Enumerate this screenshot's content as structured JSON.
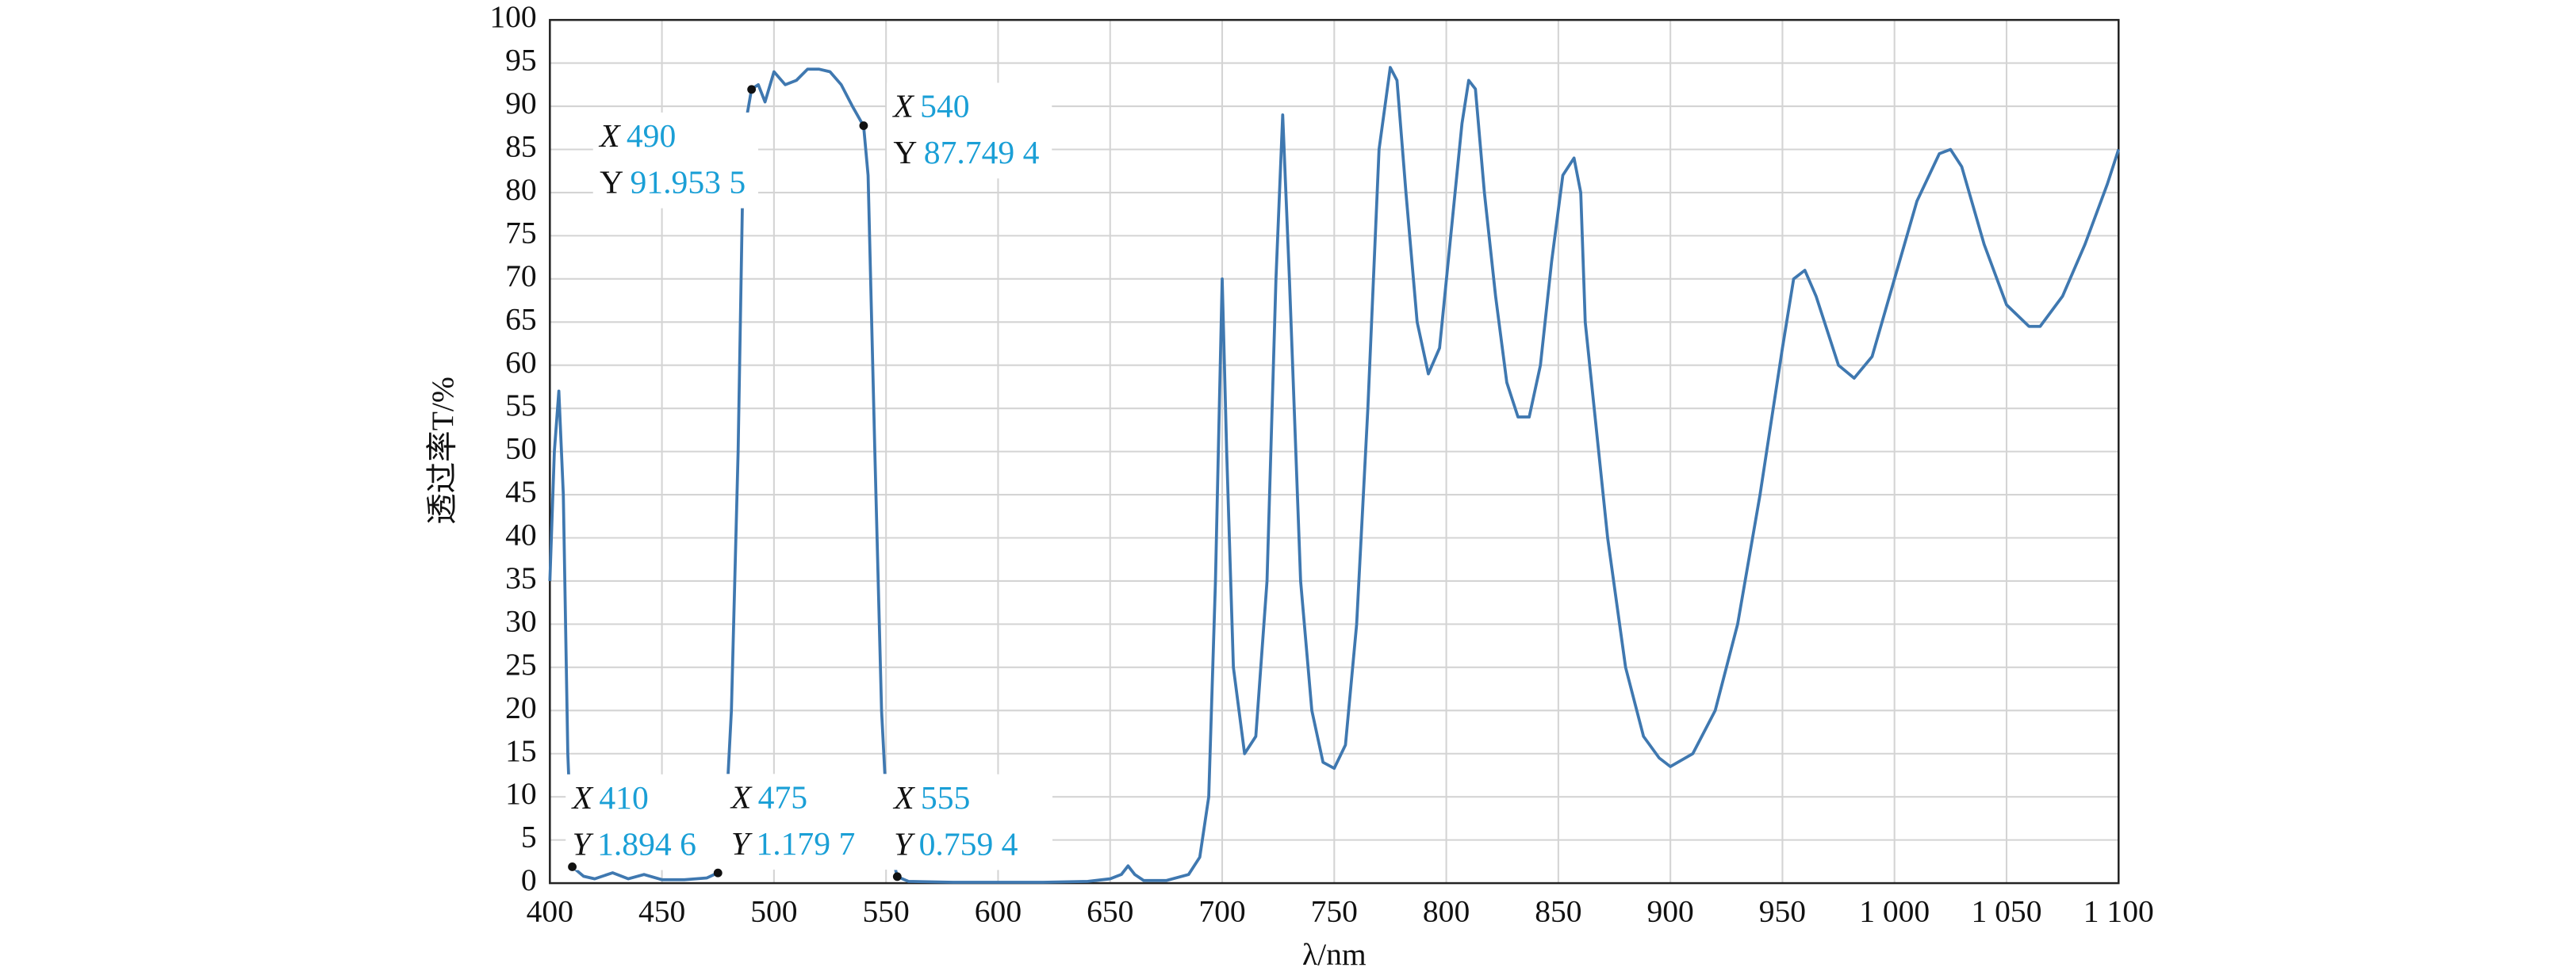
{
  "chart_data": {
    "type": "line",
    "xlabel": "λ/nm",
    "ylabel": "透过率T/%",
    "color": "#3f78b0",
    "grid": true,
    "xlim": [
      400,
      1100
    ],
    "ylim": [
      0,
      100
    ],
    "xticks": [
      400,
      450,
      500,
      550,
      600,
      650,
      700,
      750,
      800,
      850,
      900,
      950,
      {
        "value": 1000,
        "label": "1 000"
      },
      {
        "value": 1050,
        "label": "1 050"
      },
      {
        "value": 1100,
        "label": "1 100"
      }
    ],
    "yticks": [
      0,
      5,
      10,
      15,
      20,
      25,
      30,
      35,
      40,
      45,
      50,
      55,
      60,
      65,
      70,
      75,
      80,
      85,
      90,
      95,
      100
    ],
    "x": [
      400,
      402,
      404,
      406,
      408,
      410,
      415,
      420,
      428,
      435,
      442,
      450,
      460,
      470,
      475,
      478,
      481,
      484,
      486,
      488,
      490,
      493,
      496,
      500,
      505,
      510,
      515,
      520,
      525,
      530,
      535,
      540,
      542,
      545,
      548,
      551,
      555,
      560,
      580,
      600,
      620,
      640,
      650,
      655,
      658,
      661,
      665,
      675,
      685,
      690,
      694,
      697,
      700,
      702,
      705,
      710,
      715,
      720,
      724,
      727,
      730,
      735,
      740,
      745,
      750,
      755,
      760,
      765,
      770,
      775,
      778,
      782,
      787,
      792,
      797,
      802,
      807,
      810,
      813,
      817,
      822,
      827,
      832,
      837,
      842,
      847,
      852,
      857,
      860,
      862,
      866,
      872,
      880,
      888,
      895,
      900,
      910,
      920,
      930,
      940,
      950,
      955,
      960,
      965,
      975,
      982,
      990,
      1000,
      1010,
      1020,
      1025,
      1030,
      1040,
      1050,
      1060,
      1065,
      1075,
      1085,
      1095,
      1100
    ],
    "values": [
      35,
      50,
      57,
      45,
      15,
      1.9,
      0.8,
      0.5,
      1.2,
      0.5,
      1.0,
      0.4,
      0.4,
      0.6,
      1.2,
      5,
      20,
      50,
      80,
      89,
      92,
      92.5,
      90.5,
      94,
      92.5,
      93,
      94.3,
      94.3,
      94,
      92.5,
      90,
      87.7,
      82,
      50,
      20,
      5,
      0.76,
      0.2,
      0.1,
      0.1,
      0.1,
      0.2,
      0.5,
      1,
      2,
      1,
      0.3,
      0.3,
      1,
      3,
      10,
      35,
      70,
      50,
      25,
      15,
      17,
      35,
      70,
      89,
      70,
      35,
      20,
      14,
      13.3,
      16,
      30,
      55,
      85,
      94.5,
      93,
      80,
      65,
      59,
      62,
      75,
      88,
      93,
      92,
      80,
      68,
      58,
      54,
      54,
      60,
      72,
      82,
      84,
      80,
      65,
      55,
      40,
      25,
      17,
      14.5,
      13.5,
      15,
      20,
      30,
      45,
      62,
      70,
      71,
      68,
      60,
      58.5,
      61,
      70,
      79,
      84.5,
      85,
      83,
      74,
      67,
      64.5,
      64.5,
      68,
      74,
      81,
      85
    ],
    "annotations": [
      {
        "x_name": "X",
        "x": 490,
        "x_label": "490",
        "y_name": "Y",
        "y": 91.9535,
        "y_label": "91.953 5"
      },
      {
        "x_name": "X",
        "x": 540,
        "x_label": "540",
        "y_name": "Y",
        "y": 87.7494,
        "y_label": "87.749 4"
      },
      {
        "x_name": "X",
        "x": 410,
        "x_label": "410",
        "y_name": "Y",
        "y": 1.8946,
        "y_label": "1.894 6"
      },
      {
        "x_name": "X",
        "x": 475,
        "x_label": "475",
        "y_name": "Y",
        "y": 1.1797,
        "y_label": "1.179 7"
      },
      {
        "x_name": "X",
        "x": 555,
        "x_label": "555",
        "y_name": "Y",
        "y": 0.7594,
        "y_label": "0.759 4"
      }
    ]
  }
}
